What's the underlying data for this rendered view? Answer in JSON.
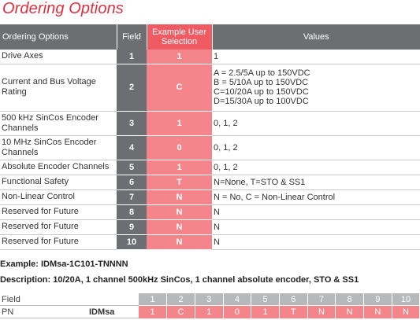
{
  "title": "Ordering Options",
  "table": {
    "headers": {
      "option": "Ordering Options",
      "field": "Field",
      "example_line1": "Example User",
      "example_line2": "Selection",
      "values": "Values"
    },
    "rows": [
      {
        "option": [
          "Drive Axes"
        ],
        "field": "1",
        "example": "1",
        "values": [
          "1"
        ]
      },
      {
        "option": [
          "Current and Bus Voltage",
          "Rating"
        ],
        "field": "2",
        "example": "C",
        "values": [
          "A = 2.5/5A up to 150VDC",
          "B = 5/10A up to 150VDC",
          "C=10/20A up to 150VDC",
          "D=15/30A up to 100VDC"
        ]
      },
      {
        "option": [
          "500 kHz SinCos Encoder",
          "Channels"
        ],
        "field": "3",
        "example": "1",
        "values": [
          "0, 1, 2"
        ]
      },
      {
        "option": [
          "10 MHz SinCos Encoder",
          "Channels"
        ],
        "field": "4",
        "example": "0",
        "values": [
          "0, 1, 2"
        ]
      },
      {
        "option": [
          "Absolute Encoder Channels"
        ],
        "field": "5",
        "example": "1",
        "values": [
          "0, 1, 2"
        ]
      },
      {
        "option": [
          "Functional Safety"
        ],
        "field": "6",
        "example": "T",
        "values": [
          "N=None, T=STO & SS1"
        ]
      },
      {
        "option": [
          "Non-Linear Control"
        ],
        "field": "7",
        "example": "N",
        "values": [
          "N = No, C = Non-Linear Control"
        ]
      },
      {
        "option": [
          "Reserved for Future"
        ],
        "field": "8",
        "example": "N",
        "values": [
          "N"
        ]
      },
      {
        "option": [
          "Reserved for Future"
        ],
        "field": "9",
        "example": "N",
        "values": [
          "N"
        ]
      },
      {
        "option": [
          "Reserved for Future"
        ],
        "field": "10",
        "example": "N",
        "values": [
          "N"
        ]
      }
    ]
  },
  "example_text": "Example: IDMsa-1C101-TNNNN",
  "description_text": "Description: 10/20A, 1 channel 500kHz SinCos, 1 channel absolute encoder, STO & SS1",
  "pn_table": {
    "field_label": "Field",
    "pn_label": "PN",
    "pn_value": "IDMsa",
    "field_numbers": [
      "1",
      "2",
      "3",
      "4",
      "5",
      "6",
      "7",
      "8",
      "9",
      "10"
    ],
    "pn_chars": [
      "1",
      "C",
      "1",
      "0",
      "1",
      "T",
      "N",
      "N",
      "N",
      "N"
    ]
  },
  "colors": {
    "accent_red": "#e0303f",
    "header_gray": "#6d6e72",
    "example_pink": "#f4858a",
    "field_number_gray": "#b7b8ba"
  }
}
